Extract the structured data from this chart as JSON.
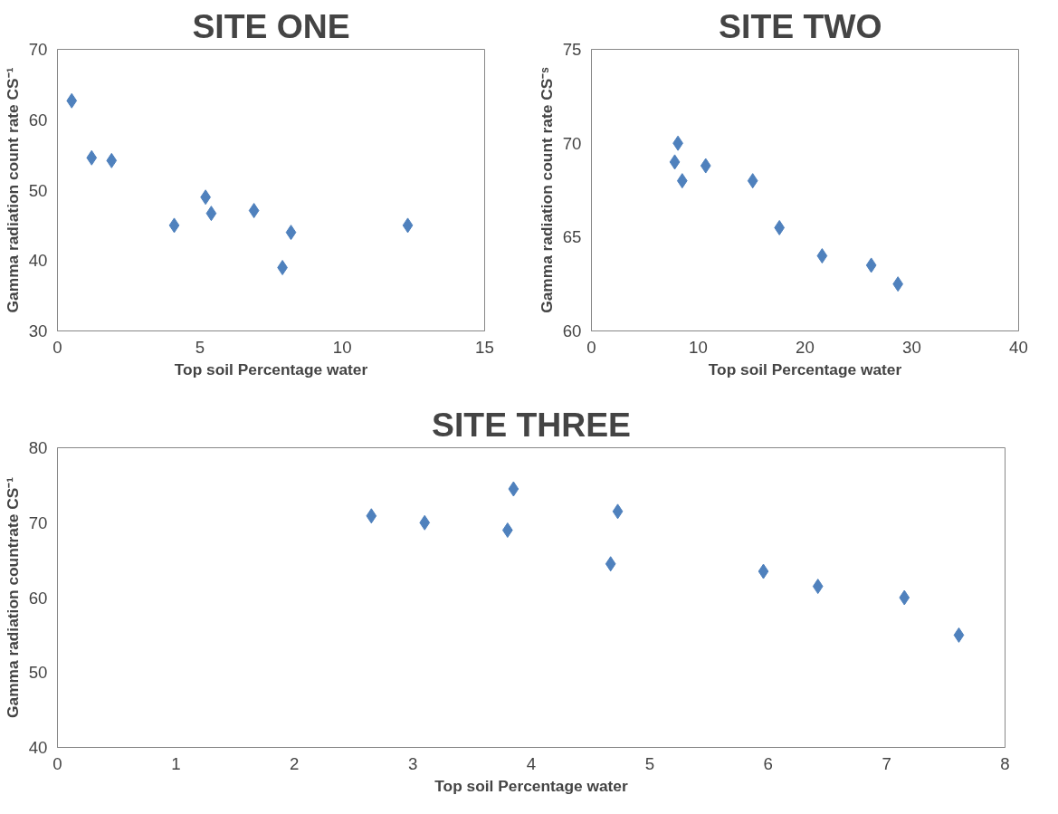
{
  "chart_data": [
    {
      "type": "scatter",
      "title": "SITE ONE",
      "xlabel": "Top soil Percentage water",
      "ylabel": "Gamma radiation count rate CS⁻¹",
      "marker": "diamond",
      "color": "#4f81bd",
      "x": [
        0.5,
        1.2,
        1.9,
        4.1,
        5.2,
        5.4,
        6.9,
        7.9,
        8.2,
        12.3
      ],
      "values": [
        62.7,
        54.6,
        54.2,
        45.0,
        49.0,
        46.7,
        47.1,
        39.0,
        44.0,
        45.0
      ],
      "xlim": [
        0,
        15
      ],
      "ylim": [
        30,
        70
      ],
      "xticks": [
        0,
        5,
        10,
        15
      ],
      "yticks": [
        30,
        40,
        50,
        60,
        70
      ]
    },
    {
      "type": "scatter",
      "title": "SITE  TWO",
      "xlabel": "Top soil Percentage water",
      "ylabel": "Gamma radiation count rate CS⁻ˢ",
      "marker": "diamond",
      "color": "#4f81bd",
      "x": [
        8.1,
        7.8,
        8.5,
        10.7,
        15.1,
        17.6,
        21.6,
        26.2,
        28.7
      ],
      "values": [
        70.0,
        69.0,
        68.0,
        68.8,
        68.0,
        65.5,
        64.0,
        63.5,
        62.5
      ],
      "xlim": [
        0,
        40
      ],
      "ylim": [
        60,
        75
      ],
      "xticks": [
        0,
        10,
        20,
        30,
        40
      ],
      "yticks": [
        60,
        65,
        70,
        75
      ]
    },
    {
      "type": "scatter",
      "title": "SITE THREE",
      "xlabel": "Top soil Percentage water",
      "ylabel": "Gamma radiation countrate CS⁻¹",
      "marker": "diamond",
      "color": "#4f81bd",
      "x": [
        2.65,
        3.1,
        3.8,
        3.85,
        4.67,
        4.73,
        5.96,
        6.42,
        7.15,
        7.61
      ],
      "values": [
        70.9,
        70.0,
        69.0,
        74.5,
        64.5,
        71.5,
        63.5,
        61.5,
        60.0,
        55.0
      ],
      "xlim": [
        0,
        8
      ],
      "ylim": [
        40,
        80
      ],
      "xticks": [
        0,
        1,
        2,
        3,
        4,
        5,
        6,
        7,
        8
      ],
      "yticks": [
        40,
        50,
        60,
        70,
        80
      ]
    }
  ]
}
